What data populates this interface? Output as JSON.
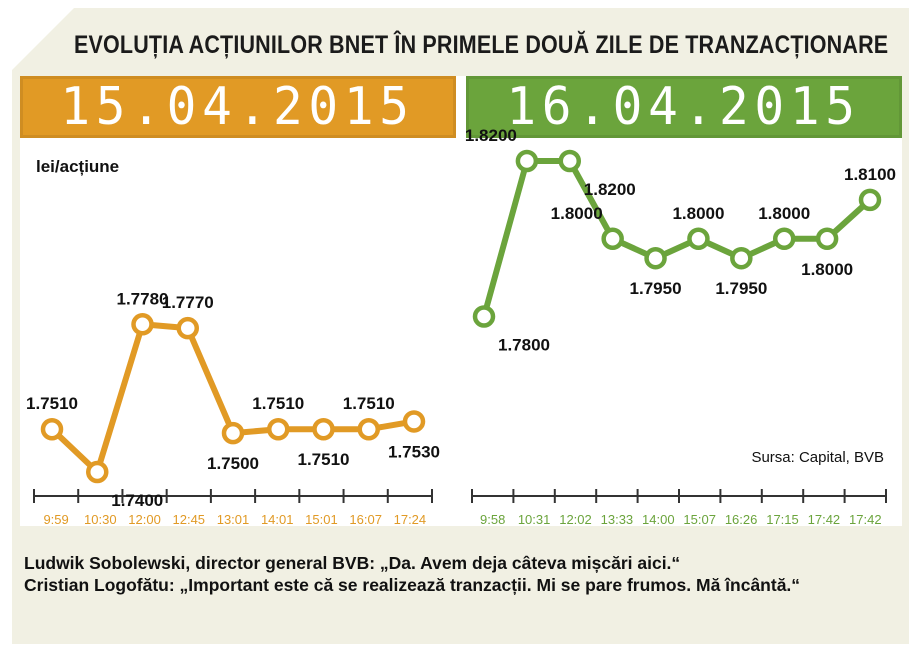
{
  "title": "EVOLUȚIA ACȚIUNILOR BNET ÎN PRIMELE DOUĂ ZILE DE TRANZACȚIONARE",
  "colors": {
    "orange": "#e19a25",
    "green": "#6ba43c",
    "background": "#f1f0e3"
  },
  "caption": {
    "line1": "Ludwik Sobolewski, director general BVB: „Da. Avem deja câteva mișcări aici.“",
    "line2": "Cristian Logofătu: „Important este că se realizează tranzacții. Mi se pare frumos. Mă încântă.“"
  },
  "chart_data": [
    {
      "type": "line",
      "title": "15.04.2015",
      "ylabel": "lei/acțiune",
      "color": "#e19a25",
      "x": [
        "9:59",
        "10:30",
        "12:00",
        "12:45",
        "13:01",
        "14:01",
        "15:01",
        "16:07",
        "17:24"
      ],
      "y": [
        1.751,
        1.74,
        1.778,
        1.777,
        1.75,
        1.751,
        1.751,
        1.751,
        1.753
      ],
      "labels": [
        "1.7510",
        "1.7400",
        "1.7780",
        "1.7770",
        "1.7500",
        "1.7510",
        "1.7510",
        "1.7510",
        "1.7530"
      ],
      "label_positions": [
        "above",
        "right",
        "above",
        "above",
        "below",
        "above",
        "below",
        "above",
        "below"
      ]
    },
    {
      "type": "line",
      "title": "16.04.2015",
      "color": "#6ba43c",
      "source": "Sursa: Capital, BVB",
      "x": [
        "9:58",
        "10:31",
        "12:02",
        "13:33",
        "14:00",
        "15:07",
        "16:26",
        "17:15",
        "17:42",
        "17:42"
      ],
      "y": [
        1.78,
        1.82,
        1.82,
        1.8,
        1.795,
        1.8,
        1.795,
        1.8,
        1.8,
        1.81
      ],
      "labels": [
        "1.7800",
        "1.8200",
        "1.8200",
        "1.8000",
        "1.7950",
        "1.8000",
        "1.7950",
        "1.8000",
        "1.8000",
        "1.8100"
      ],
      "label_positions": [
        "right",
        "left",
        "right",
        "left",
        "below",
        "above",
        "below",
        "above",
        "below",
        "above"
      ]
    }
  ]
}
